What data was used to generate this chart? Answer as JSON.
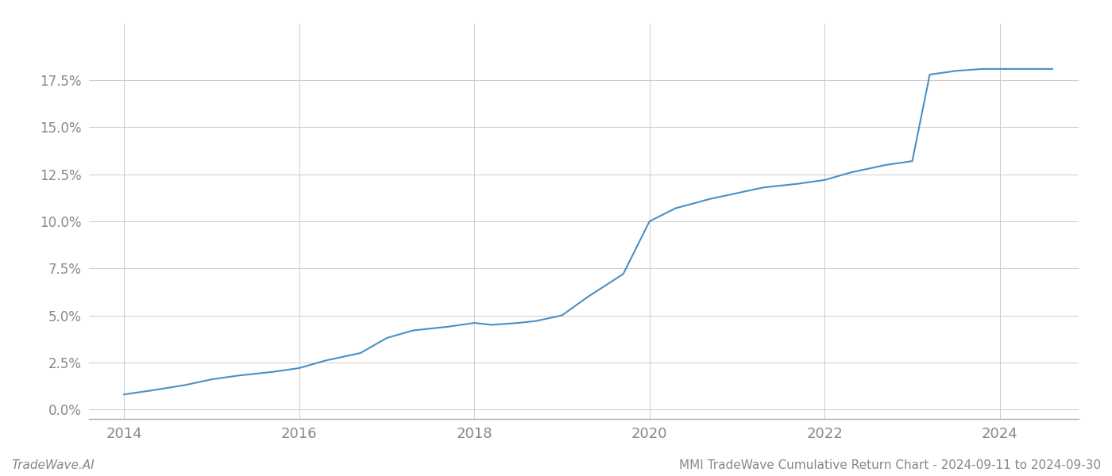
{
  "title": "",
  "footer_left": "TradeWave.AI",
  "footer_right": "MMI TradeWave Cumulative Return Chart - 2024-09-11 to 2024-09-30",
  "line_color": "#4a90c4",
  "background_color": "#ffffff",
  "grid_color": "#cccccc",
  "text_color": "#888888",
  "x_values": [
    2014.0,
    2014.3,
    2014.7,
    2015.0,
    2015.3,
    2015.7,
    2016.0,
    2016.3,
    2016.7,
    2017.0,
    2017.3,
    2017.7,
    2018.0,
    2018.2,
    2018.5,
    2018.7,
    2019.0,
    2019.3,
    2019.7,
    2020.0,
    2020.3,
    2020.7,
    2021.0,
    2021.3,
    2021.7,
    2022.0,
    2022.3,
    2022.5,
    2022.7,
    2023.0,
    2023.2,
    2023.5,
    2023.8,
    2024.0,
    2024.3,
    2024.6
  ],
  "y_values": [
    0.008,
    0.01,
    0.013,
    0.016,
    0.018,
    0.02,
    0.022,
    0.026,
    0.03,
    0.038,
    0.042,
    0.044,
    0.046,
    0.045,
    0.046,
    0.047,
    0.05,
    0.06,
    0.072,
    0.1,
    0.107,
    0.112,
    0.115,
    0.118,
    0.12,
    0.122,
    0.126,
    0.128,
    0.13,
    0.132,
    0.178,
    0.18,
    0.181,
    0.181,
    0.181,
    0.181
  ],
  "xlim": [
    2013.6,
    2024.9
  ],
  "ylim": [
    -0.005,
    0.205
  ],
  "xticks": [
    2014,
    2016,
    2018,
    2020,
    2022,
    2024
  ],
  "yticks": [
    0.0,
    0.025,
    0.05,
    0.075,
    0.1,
    0.125,
    0.15,
    0.175
  ],
  "line_width": 1.5,
  "figsize": [
    14.0,
    6.0
  ],
  "dpi": 100
}
